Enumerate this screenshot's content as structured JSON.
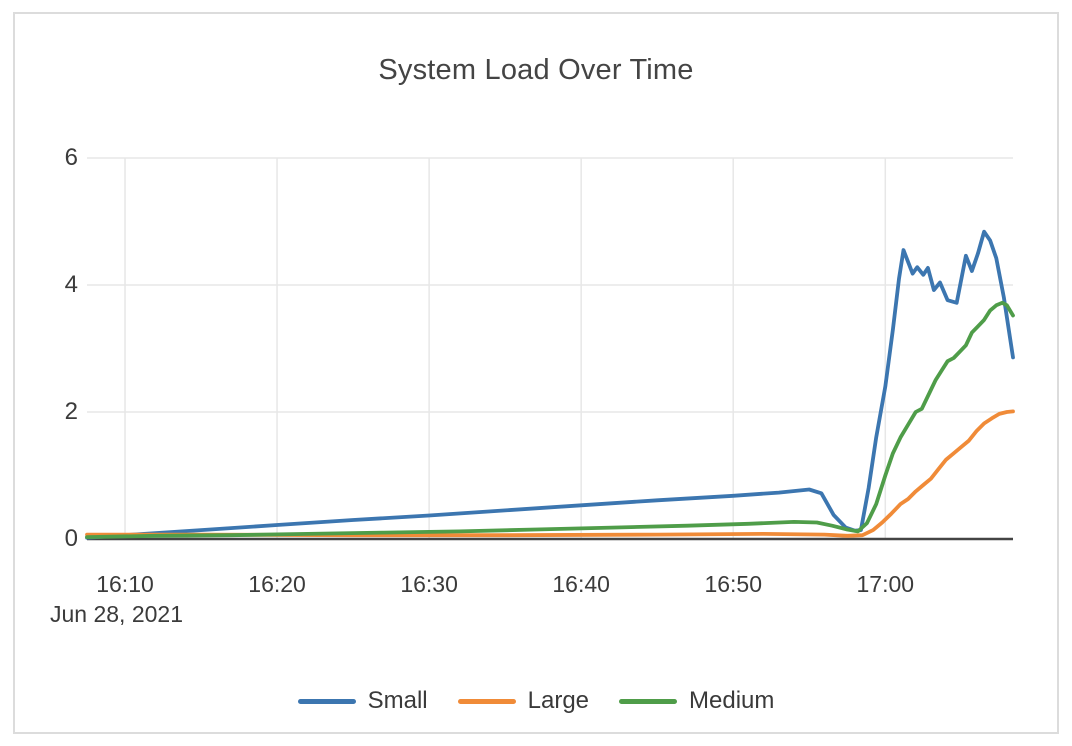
{
  "card": {
    "background": "#ffffff",
    "border_color": "#dcdcdc"
  },
  "chart_data": {
    "type": "line",
    "title": "System Load Over Time",
    "title_color": "#444444",
    "grid": {
      "show": true,
      "gridline_color": "#e7e7e7",
      "axis_line_color": "#444444",
      "label_color": "#3b3b3b"
    },
    "legend_position": "bottom",
    "x_axis": {
      "date_label": "Jun 28, 2021",
      "unit": "minutes after 16:00 on Jun 28, 2021",
      "domain": [
        7.5,
        68.4
      ],
      "ticks": [
        {
          "t": 10,
          "label": "16:10"
        },
        {
          "t": 20,
          "label": "16:20"
        },
        {
          "t": 30,
          "label": "16:30"
        },
        {
          "t": 40,
          "label": "16:40"
        },
        {
          "t": 50,
          "label": "16:50"
        },
        {
          "t": 60,
          "label": "17:00"
        }
      ]
    },
    "y_axis": {
      "domain": [
        0,
        6
      ],
      "ticks": [
        {
          "v": 0,
          "label": "0"
        },
        {
          "v": 2,
          "label": "2"
        },
        {
          "v": 4,
          "label": "4"
        },
        {
          "v": 6,
          "label": "6"
        }
      ]
    },
    "series": [
      {
        "name": "Small",
        "color": "#3c76b0",
        "points": [
          [
            7.5,
            0.02
          ],
          [
            10,
            0.06
          ],
          [
            15,
            0.14
          ],
          [
            20,
            0.22
          ],
          [
            25,
            0.3
          ],
          [
            30,
            0.37
          ],
          [
            35,
            0.45
          ],
          [
            40,
            0.53
          ],
          [
            45,
            0.61
          ],
          [
            50,
            0.68
          ],
          [
            53,
            0.73
          ],
          [
            55,
            0.78
          ],
          [
            55.8,
            0.72
          ],
          [
            56.6,
            0.38
          ],
          [
            57.4,
            0.18
          ],
          [
            58,
            0.13
          ],
          [
            58.4,
            0.14
          ],
          [
            58.9,
            0.8
          ],
          [
            59.4,
            1.6
          ],
          [
            60,
            2.4
          ],
          [
            60.5,
            3.3
          ],
          [
            60.9,
            4.1
          ],
          [
            61.2,
            4.55
          ],
          [
            61.8,
            4.18
          ],
          [
            62.1,
            4.28
          ],
          [
            62.5,
            4.16
          ],
          [
            62.8,
            4.27
          ],
          [
            63.2,
            3.92
          ],
          [
            63.6,
            4.04
          ],
          [
            64.1,
            3.76
          ],
          [
            64.7,
            3.72
          ],
          [
            65.3,
            4.46
          ],
          [
            65.7,
            4.22
          ],
          [
            66.1,
            4.5
          ],
          [
            66.5,
            4.84
          ],
          [
            66.9,
            4.7
          ],
          [
            67.3,
            4.42
          ],
          [
            67.8,
            3.8
          ],
          [
            68.4,
            2.86
          ]
        ]
      },
      {
        "name": "Large",
        "color": "#f08b38",
        "points": [
          [
            7.5,
            0.07
          ],
          [
            15,
            0.07
          ],
          [
            25,
            0.06
          ],
          [
            35,
            0.06
          ],
          [
            45,
            0.07
          ],
          [
            52,
            0.08
          ],
          [
            56,
            0.07
          ],
          [
            57.5,
            0.05
          ],
          [
            58.5,
            0.06
          ],
          [
            59.2,
            0.14
          ],
          [
            59.8,
            0.26
          ],
          [
            60.4,
            0.4
          ],
          [
            61,
            0.55
          ],
          [
            61.5,
            0.63
          ],
          [
            62,
            0.75
          ],
          [
            62.5,
            0.85
          ],
          [
            63,
            0.95
          ],
          [
            63.5,
            1.1
          ],
          [
            64,
            1.25
          ],
          [
            64.5,
            1.35
          ],
          [
            65,
            1.45
          ],
          [
            65.5,
            1.55
          ],
          [
            66,
            1.7
          ],
          [
            66.5,
            1.82
          ],
          [
            67,
            1.9
          ],
          [
            67.5,
            1.97
          ],
          [
            68,
            2.0
          ],
          [
            68.4,
            2.01
          ]
        ]
      },
      {
        "name": "Medium",
        "color": "#4f9d49",
        "points": [
          [
            7.5,
            0.03
          ],
          [
            12,
            0.05
          ],
          [
            17,
            0.06
          ],
          [
            22,
            0.08
          ],
          [
            27,
            0.1
          ],
          [
            32,
            0.12
          ],
          [
            37,
            0.15
          ],
          [
            42,
            0.18
          ],
          [
            47,
            0.21
          ],
          [
            51,
            0.24
          ],
          [
            54,
            0.27
          ],
          [
            55.5,
            0.26
          ],
          [
            56.5,
            0.21
          ],
          [
            57.5,
            0.15
          ],
          [
            58.2,
            0.12
          ],
          [
            58.8,
            0.25
          ],
          [
            59.4,
            0.55
          ],
          [
            60,
            1.0
          ],
          [
            60.5,
            1.35
          ],
          [
            61,
            1.6
          ],
          [
            61.5,
            1.8
          ],
          [
            62,
            2.0
          ],
          [
            62.4,
            2.05
          ],
          [
            62.9,
            2.3
          ],
          [
            63.3,
            2.5
          ],
          [
            63.7,
            2.65
          ],
          [
            64.1,
            2.8
          ],
          [
            64.5,
            2.85
          ],
          [
            64.9,
            2.95
          ],
          [
            65.3,
            3.05
          ],
          [
            65.7,
            3.25
          ],
          [
            66.1,
            3.35
          ],
          [
            66.5,
            3.45
          ],
          [
            66.9,
            3.6
          ],
          [
            67.3,
            3.68
          ],
          [
            67.7,
            3.72
          ],
          [
            68.0,
            3.68
          ],
          [
            68.4,
            3.52
          ]
        ]
      }
    ]
  }
}
